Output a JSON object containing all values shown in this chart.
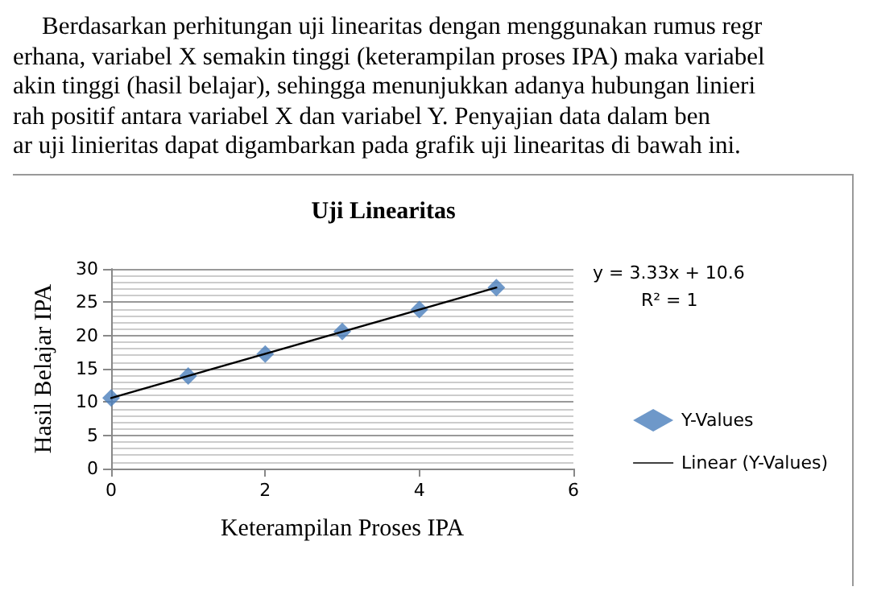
{
  "chart_data": {
    "type": "scatter",
    "title": "Uji Linearitas",
    "xlabel": "Keterampilan Proses IPA",
    "ylabel": "Hasil Belajar IPA",
    "annotations": [
      "Berdasarkan perhitungan uji linearitas dengan menggunakan rumus regr",
      "erhana, variabel X semakin tinggi (keterampilan proses IPA) maka variabel",
      "akin tinggi (hasil belajar), sehingga menunjukkan adanya hubungan linieri",
      "rah positif antara variabel X dan variabel Y. Penyajian data dalam ben",
      "ar uji linieritas dapat digambarkan pada grafik uji linearitas di bawah ini.",
      "y = 3.33x + 10.6",
      "R² = 1"
    ],
    "x": [
      0,
      1,
      2,
      3,
      4,
      5
    ],
    "series": [
      {
        "name": "Y-Values",
        "color": "#4a7ebb",
        "marker": "diamond",
        "values": [
          10.6,
          13.9,
          17.2,
          20.6,
          23.9,
          27.2
        ]
      },
      {
        "name": "Linear (Y-Values)",
        "type": "line",
        "color": "#000000",
        "marker": "none",
        "x": [
          0,
          5
        ],
        "values": [
          10.6,
          27.2
        ]
      }
    ],
    "xlim": [
      0,
      6
    ],
    "xticks": [
      0,
      2,
      4,
      6
    ],
    "ylim": [
      0,
      30
    ],
    "yticks": [
      0,
      5,
      10,
      15,
      20,
      25,
      30
    ],
    "grid": "y",
    "legend": "right"
  }
}
